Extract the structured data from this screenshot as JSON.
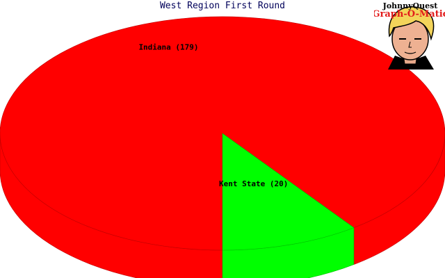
{
  "chart_data": {
    "type": "pie",
    "style": "3d",
    "title": "West Region First Round",
    "slices": [
      {
        "label": "Indiana (179)",
        "name": "Indiana",
        "value": 179,
        "color": "#ff0000"
      },
      {
        "label": "Kent State (20)",
        "name": "Kent State",
        "value": 20,
        "color": "#00ff00"
      }
    ],
    "legend": "none"
  },
  "branding": {
    "line1": "JohnnyQuest",
    "line2": "Graph-O-Matic"
  }
}
